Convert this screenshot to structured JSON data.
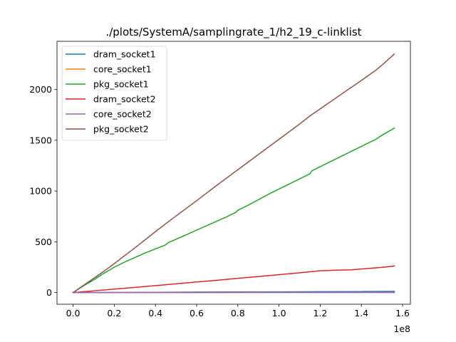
{
  "chart_data": {
    "type": "line",
    "title": "./plots/SystemA/samplingrate_1/h2_19_c-linklist",
    "xlabel": "",
    "ylabel": "",
    "x_offset_text": "1e8",
    "xlim": [
      -0.078,
      1.638
    ],
    "ylim": [
      -115,
      2475
    ],
    "x_scale": 100000000,
    "x_ticks": [
      0.0,
      0.2,
      0.4,
      0.6,
      0.8,
      1.0,
      1.2,
      1.4,
      1.6
    ],
    "x_tick_labels": [
      "0.0",
      "0.2",
      "0.4",
      "0.6",
      "0.8",
      "1.0",
      "1.2",
      "1.4",
      "1.6"
    ],
    "y_ticks": [
      0,
      500,
      1000,
      1500,
      2000
    ],
    "y_tick_labels": [
      "0",
      "500",
      "1000",
      "1500",
      "2000"
    ],
    "grid": false,
    "legend_position": "upper-left",
    "series": [
      {
        "name": "dram_socket1",
        "color": "#1f77b4",
        "x": [
          0.0,
          0.2,
          0.4,
          0.6,
          0.8,
          1.0,
          1.2,
          1.4,
          1.56
        ],
        "y": [
          0,
          2,
          3,
          5,
          6,
          7,
          9,
          10,
          12
        ]
      },
      {
        "name": "core_socket1",
        "color": "#ff7f0e",
        "x": [
          0.0,
          0.4,
          0.8,
          1.2,
          1.56
        ],
        "y": [
          0,
          1,
          1,
          2,
          2
        ]
      },
      {
        "name": "pkg_socket1",
        "color": "#2ca02c",
        "x": [
          0.0,
          0.05,
          0.1,
          0.15,
          0.2,
          0.25,
          0.3,
          0.35,
          0.4,
          0.45,
          0.46,
          0.5,
          0.55,
          0.6,
          0.65,
          0.7,
          0.75,
          0.79,
          0.8,
          0.85,
          0.9,
          0.95,
          1.0,
          1.05,
          1.1,
          1.15,
          1.16,
          1.2,
          1.25,
          1.3,
          1.35,
          1.4,
          1.45,
          1.47,
          1.5,
          1.56
        ],
        "y": [
          0,
          65,
          125,
          190,
          250,
          300,
          345,
          390,
          430,
          470,
          490,
          525,
          570,
          615,
          660,
          705,
          750,
          790,
          810,
          860,
          915,
          970,
          1020,
          1070,
          1120,
          1170,
          1200,
          1240,
          1290,
          1340,
          1390,
          1440,
          1490,
          1510,
          1550,
          1620
        ]
      },
      {
        "name": "dram_socket2",
        "color": "#d62728",
        "x": [
          0.0,
          0.1,
          0.2,
          0.3,
          0.4,
          0.5,
          0.6,
          0.7,
          0.8,
          0.9,
          1.0,
          1.1,
          1.2,
          1.3,
          1.35,
          1.4,
          1.5,
          1.56
        ],
        "y": [
          0,
          17,
          34,
          51,
          68,
          86,
          104,
          121,
          140,
          158,
          176,
          195,
          215,
          222,
          224,
          232,
          248,
          262
        ]
      },
      {
        "name": "core_socket2",
        "color": "#9467bd",
        "x": [
          0.0,
          0.4,
          0.8,
          1.2,
          1.56
        ],
        "y": [
          0,
          0,
          1,
          1,
          1
        ]
      },
      {
        "name": "pkg_socket2",
        "color": "#8c564b",
        "x": [
          0.0,
          0.05,
          0.1,
          0.15,
          0.2,
          0.3,
          0.4,
          0.5,
          0.6,
          0.7,
          0.8,
          0.9,
          1.0,
          1.1,
          1.15,
          1.2,
          1.3,
          1.4,
          1.47,
          1.5,
          1.56
        ],
        "y": [
          0,
          70,
          140,
          210,
          285,
          440,
          600,
          755,
          905,
          1060,
          1210,
          1360,
          1510,
          1660,
          1740,
          1810,
          1950,
          2090,
          2190,
          2240,
          2350
        ]
      }
    ]
  }
}
